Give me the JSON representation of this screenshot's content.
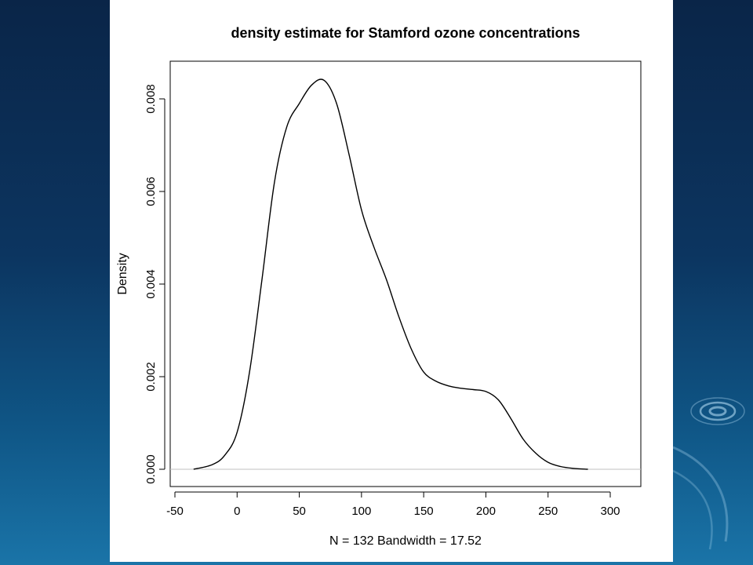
{
  "chart_data": {
    "type": "line",
    "title": "density estimate for Stamford ozone concentrations",
    "xlabel": "N = 132   Bandwidth = 17.52",
    "ylabel": "Density",
    "xlim": [
      -50,
      300
    ],
    "ylim": [
      0,
      0.0085
    ],
    "xticks": [
      "-50",
      "0",
      "50",
      "100",
      "150",
      "200",
      "250",
      "300"
    ],
    "yticks": [
      "0.000",
      "0.002",
      "0.004",
      "0.006",
      "0.008"
    ],
    "baseline": 0,
    "grid": false,
    "series": [
      {
        "x": [
          -35,
          -20,
          -10,
          0,
          10,
          20,
          30,
          40,
          50,
          60,
          70,
          80,
          90,
          100,
          110,
          120,
          130,
          140,
          150,
          160,
          170,
          180,
          190,
          200,
          210,
          220,
          230,
          240,
          250,
          260,
          270,
          282
        ],
        "y": [
          0.0,
          0.0001,
          0.0003,
          0.0008,
          0.0021,
          0.0041,
          0.0062,
          0.0074,
          0.0079,
          0.0083,
          0.0084,
          0.0079,
          0.0068,
          0.0056,
          0.0048,
          0.0041,
          0.0033,
          0.0026,
          0.0021,
          0.0019,
          0.0018,
          0.00175,
          0.00172,
          0.00168,
          0.0015,
          0.0011,
          0.00065,
          0.00035,
          0.00015,
          6e-05,
          2e-05,
          0.0
        ]
      }
    ]
  }
}
